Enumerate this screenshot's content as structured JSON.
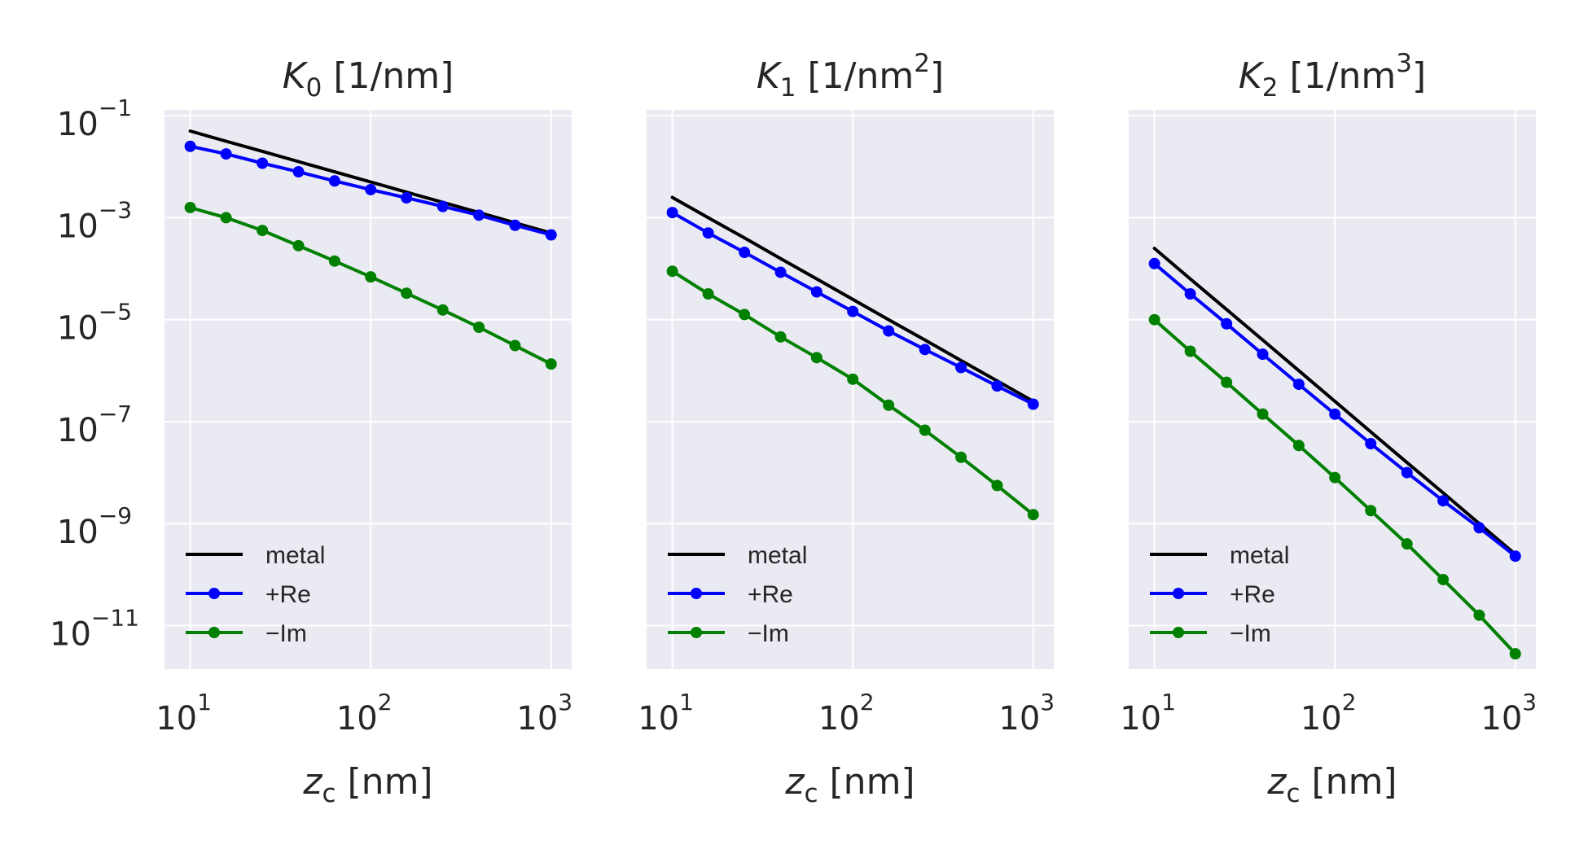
{
  "chart_data": [
    {
      "type": "line",
      "title": "K₀ [1/nm]",
      "title_main": "K",
      "title_sub": "0",
      "title_unit": " [1/nm]",
      "title_sup": "",
      "xlabel": "zᴄ [nm]",
      "xlabel_main": "z",
      "xlabel_sub": "c",
      "xlabel_unit": " [nm]",
      "x_scale": "log",
      "y_scale": "log",
      "xlim": [
        7.2,
        1300
      ],
      "ylim": [
        1.4e-12,
        0.13
      ],
      "x_ticks": [
        {
          "base": "10",
          "exp": "1",
          "value": 10
        },
        {
          "base": "10",
          "exp": "2",
          "value": 100
        },
        {
          "base": "10",
          "exp": "3",
          "value": 1000
        }
      ],
      "y_ticks": [
        {
          "base": "10",
          "exp": "−11",
          "value": 1e-11
        },
        {
          "base": "10",
          "exp": "−9",
          "value": 1e-09
        },
        {
          "base": "10",
          "exp": "−7",
          "value": 1e-07
        },
        {
          "base": "10",
          "exp": "−5",
          "value": 1e-05
        },
        {
          "base": "10",
          "exp": "−3",
          "value": 0.001
        },
        {
          "base": "10",
          "exp": "−1",
          "value": 0.1
        }
      ],
      "show_y_tick_labels": true,
      "grid": true,
      "legend_position": "lower-left",
      "x": [
        10,
        15.8,
        25.1,
        39.8,
        63.1,
        100,
        158,
        251,
        398,
        631,
        1000
      ],
      "series": [
        {
          "name": "metal",
          "color": "#000000",
          "marker": false,
          "values": [
            0.05,
            0.0316,
            0.02,
            0.0126,
            0.00794,
            0.005,
            0.00316,
            0.002,
            0.00126,
            0.000794,
            0.0005
          ]
        },
        {
          "name": "+Re",
          "color": "#0000ff",
          "marker": true,
          "values": [
            0.0251,
            0.0178,
            0.0117,
            0.00794,
            0.00525,
            0.00355,
            0.00245,
            0.00166,
            0.00112,
            0.000708,
            0.00046
          ]
        },
        {
          "name": "−Im",
          "color": "#008000",
          "marker": true,
          "values": [
            0.00158,
            0.001,
            0.000562,
            0.000282,
            0.000141,
            6.9e-05,
            3.3e-05,
            1.55e-05,
            7.1e-06,
            3.1e-06,
            1.35e-06
          ]
        }
      ]
    },
    {
      "type": "line",
      "title": "K₁ [1/nm²]",
      "title_main": "K",
      "title_sub": "1",
      "title_unit": " [1/nm",
      "title_sup": "2",
      "title_close": "]",
      "xlabel": "zᴄ [nm]",
      "xlabel_main": "z",
      "xlabel_sub": "c",
      "xlabel_unit": " [nm]",
      "x_scale": "log",
      "y_scale": "log",
      "xlim": [
        7.2,
        1300
      ],
      "ylim": [
        1.4e-12,
        0.13
      ],
      "x_ticks": [
        {
          "base": "10",
          "exp": "1",
          "value": 10
        },
        {
          "base": "10",
          "exp": "2",
          "value": 100
        },
        {
          "base": "10",
          "exp": "3",
          "value": 1000
        }
      ],
      "y_ticks": [
        {
          "value": 1e-11
        },
        {
          "value": 1e-09
        },
        {
          "value": 1e-07
        },
        {
          "value": 1e-05
        },
        {
          "value": 0.001
        },
        {
          "value": 0.1
        }
      ],
      "show_y_tick_labels": false,
      "grid": true,
      "legend_position": "lower-left",
      "x": [
        10,
        15.8,
        25.1,
        39.8,
        63.1,
        100,
        158,
        251,
        398,
        631,
        1000
      ],
      "series": [
        {
          "name": "metal",
          "color": "#000000",
          "marker": false,
          "values": [
            0.0025,
            0.001,
            0.0004,
            0.000158,
            6.3e-05,
            2.5e-05,
            1e-05,
            4e-06,
            1.58e-06,
            6.3e-07,
            2.5e-07
          ]
        },
        {
          "name": "+Re",
          "color": "#0000ff",
          "marker": true,
          "values": [
            0.00126,
            0.000501,
            0.000209,
            8.5e-05,
            3.5e-05,
            1.45e-05,
            6e-06,
            2.6e-06,
            1.15e-06,
            5e-07,
            2.2e-07
          ]
        },
        {
          "name": "−Im",
          "color": "#008000",
          "marker": true,
          "values": [
            8.9e-05,
            3.2e-05,
            1.26e-05,
            4.6e-06,
            1.8e-06,
            6.8e-07,
            2.1e-07,
            6.8e-08,
            2e-08,
            5.6e-09,
            1.5e-09
          ]
        }
      ]
    },
    {
      "type": "line",
      "title": "K₂ [1/nm³]",
      "title_main": "K",
      "title_sub": "2",
      "title_unit": " [1/nm",
      "title_sup": "3",
      "title_close": "]",
      "xlabel": "zᴄ [nm]",
      "xlabel_main": "z",
      "xlabel_sub": "c",
      "xlabel_unit": " [nm]",
      "x_scale": "log",
      "y_scale": "log",
      "xlim": [
        7.2,
        1300
      ],
      "ylim": [
        1.4e-12,
        0.13
      ],
      "x_ticks": [
        {
          "base": "10",
          "exp": "1",
          "value": 10
        },
        {
          "base": "10",
          "exp": "2",
          "value": 100
        },
        {
          "base": "10",
          "exp": "3",
          "value": 1000
        }
      ],
      "y_ticks": [
        {
          "value": 1e-11
        },
        {
          "value": 1e-09
        },
        {
          "value": 1e-07
        },
        {
          "value": 1e-05
        },
        {
          "value": 0.001
        },
        {
          "value": 0.1
        }
      ],
      "show_y_tick_labels": false,
      "grid": true,
      "legend_position": "lower-left",
      "x": [
        10,
        15.8,
        25.1,
        39.8,
        63.1,
        100,
        158,
        251,
        398,
        631,
        1000
      ],
      "series": [
        {
          "name": "metal",
          "color": "#000000",
          "marker": false,
          "values": [
            0.00025,
            6.3e-05,
            1.58e-05,
            4e-06,
            1e-06,
            2.5e-07,
            6.3e-08,
            1.58e-08,
            4e-09,
            1e-09,
            2.5e-10
          ]
        },
        {
          "name": "+Re",
          "color": "#0000ff",
          "marker": true,
          "values": [
            0.000126,
            3.2e-05,
            8.3e-06,
            2.1e-06,
            5.4e-07,
            1.4e-07,
            3.7e-08,
            1e-08,
            2.8e-09,
            8.3e-10,
            2.3e-10
          ]
        },
        {
          "name": "−Im",
          "color": "#008000",
          "marker": true,
          "values": [
            1e-05,
            2.4e-06,
            5.9e-07,
            1.41e-07,
            3.4e-08,
            8e-09,
            1.8e-09,
            4e-10,
            8e-11,
            1.6e-11,
            2.8e-12
          ]
        }
      ]
    }
  ],
  "style": {
    "plot_background": "#eaeaf2",
    "grid_color": "#ffffff",
    "text_color": "#262626"
  }
}
